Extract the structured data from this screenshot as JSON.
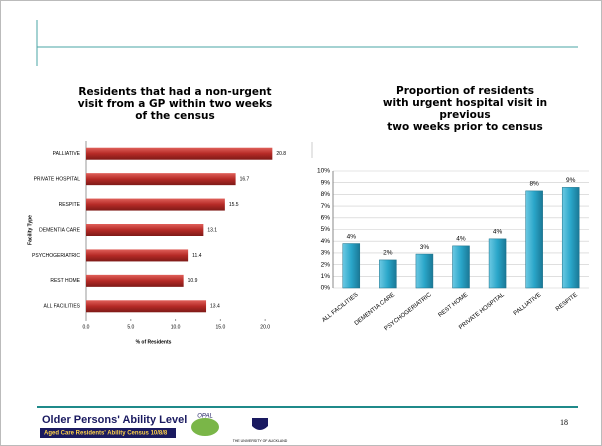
{
  "chart_data": [
    {
      "type": "bar",
      "orientation": "horizontal",
      "title": [
        "Residents that had a non-urgent",
        "visit from a GP within two weeks",
        "of the census"
      ],
      "categories": [
        "PALLIATIVE",
        "PRIVATE HOSPITAL",
        "RESPITE",
        "DEMENTIA CARE",
        "PSYCHOGERIATRIC",
        "REST HOME",
        "ALL FACILITIES"
      ],
      "values": [
        20.8,
        16.7,
        15.5,
        13.1,
        11.4,
        10.9,
        13.4
      ],
      "color": "#b52a26",
      "xlim": [
        0,
        24
      ],
      "xticks": [
        {
          "value": 0,
          "label": "0.0"
        },
        {
          "value": 5,
          "label": "5.0"
        },
        {
          "value": 10,
          "label": "10.0"
        },
        {
          "value": 15,
          "label": "15.0"
        },
        {
          "value": 20,
          "label": "20.0"
        }
      ],
      "x_label": "% of Residents",
      "y_label": "Facility Type"
    },
    {
      "type": "bar",
      "orientation": "vertical",
      "title": [
        "Proportion of residents",
        "with urgent hospital visit in",
        "previous",
        "two weeks prior to census"
      ],
      "categories": [
        "ALL FACILITIES",
        "DEMENTIA CARE",
        "PSYCHOGERIATRIC",
        "REST HOME",
        "PRIVATE HOSPITAL",
        "PALLIATIVE",
        "RESPITE"
      ],
      "values": [
        3.8,
        2.4,
        2.9,
        3.6,
        4.2,
        8.3,
        8.6
      ],
      "value_labels": [
        "4%",
        "2%",
        "3%",
        "4%",
        "4%",
        "8%",
        "9%"
      ],
      "color": "#2aa6c9",
      "ylim": [
        0,
        10
      ],
      "yticks": [
        {
          "value": 0,
          "label": "0%"
        },
        {
          "value": 1,
          "label": "1%"
        },
        {
          "value": 2,
          "label": "2%"
        },
        {
          "value": 3,
          "label": "3%"
        },
        {
          "value": 4,
          "label": "4%"
        },
        {
          "value": 5,
          "label": "5%"
        },
        {
          "value": 6,
          "label": "6%"
        },
        {
          "value": 7,
          "label": "7%"
        },
        {
          "value": 8,
          "label": "8%"
        },
        {
          "value": 9,
          "label": "9%"
        },
        {
          "value": 10,
          "label": "10%"
        }
      ],
      "grid": true
    }
  ],
  "footer": {
    "title": "Older Persons' Ability Level",
    "subtitle": "Aged Care Residents' Ability Census 10/8/8",
    "logo": "OPAL",
    "university": "THE UNIVERSITY OF AUCKLAND",
    "page": "18"
  }
}
